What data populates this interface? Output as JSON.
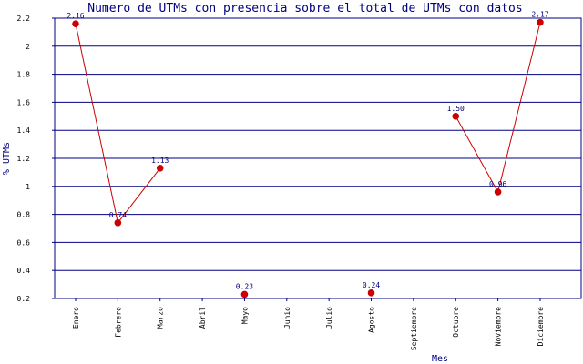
{
  "colors": {
    "grid": "#000080",
    "axis": "#000080",
    "series_line": "#cc0000",
    "marker": "#cc0000",
    "title": "#000080",
    "data_label": "#000080"
  },
  "chart_data": {
    "type": "line",
    "title": "Numero de UTMs con presencia sobre el total de UTMs con datos",
    "xlabel": "Mes",
    "ylabel": "% UTMs",
    "ylim": [
      0.2,
      2.2
    ],
    "yticks": [
      "0.2",
      "0.4",
      "0.6",
      "0.8",
      "1",
      "1.2",
      "1.4",
      "1.6",
      "1.8",
      "2",
      "2.2"
    ],
    "grid": true,
    "categories": [
      "Enero",
      "Febrero",
      "Marzo",
      "Abril",
      "Mayo",
      "Junio",
      "Julio",
      "Agosto",
      "Septiembre",
      "Octubre",
      "Noviembre",
      "Diciembre"
    ],
    "series": [
      {
        "values": [
          2.16,
          0.74,
          1.13,
          null,
          0.23,
          null,
          null,
          0.24,
          null,
          1.5,
          0.96,
          2.17
        ],
        "labels": [
          "2.16",
          "0.74",
          "1.13",
          "",
          "0.23",
          "",
          "",
          "0.24",
          "",
          "1.50",
          "0.96",
          "2.17"
        ]
      }
    ]
  }
}
